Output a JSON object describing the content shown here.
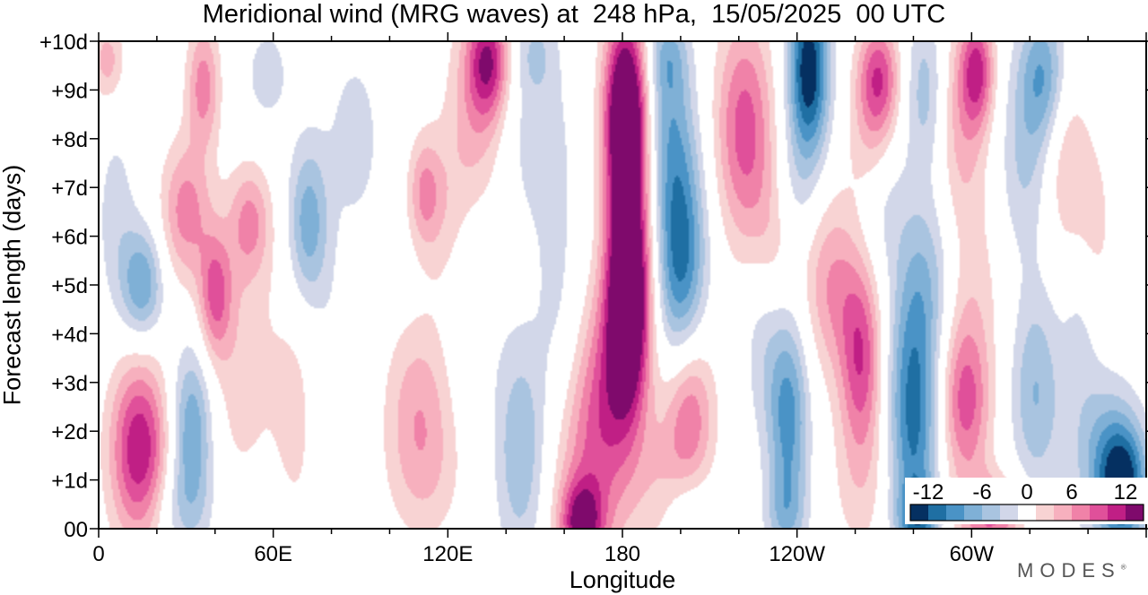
{
  "chart_data": {
    "type": "heatmap",
    "title": "Meridional wind (MRG waves) at  248 hPa,  15/05/2025  00 UTC",
    "xlabel": "Longitude",
    "ylabel": "Forecast length (days)",
    "x_ticks": [
      "0",
      "60E",
      "120E",
      "180",
      "120W",
      "60W"
    ],
    "x_tick_values": [
      0,
      60,
      120,
      180,
      240,
      300
    ],
    "x_range": [
      0,
      360
    ],
    "y_ticks": [
      "00",
      "+1d",
      "+2d",
      "+3d",
      "+4d",
      "+5d",
      "+6d",
      "+7d",
      "+8d",
      "+9d",
      "+10d"
    ],
    "y_range": [
      0,
      10
    ],
    "colorbar": {
      "labels": [
        "-12",
        "-6",
        "0",
        "6",
        "12"
      ],
      "label_values": [
        -12,
        -6,
        0,
        6,
        12
      ],
      "levels": [
        -14,
        -12,
        -10,
        -8,
        -6,
        -4,
        -2,
        2,
        4,
        6,
        8,
        10,
        12,
        14
      ],
      "colors": [
        "#053061",
        "#1f6fa3",
        "#4a93c6",
        "#7fb0d6",
        "#a9c4e0",
        "#d2d7e9",
        "#ffffff",
        "#f8d3d3",
        "#f7b0be",
        "#f082a8",
        "#e0509a",
        "#c01f85",
        "#7f0a6c"
      ]
    },
    "features": [
      {
        "lon": 3,
        "day": 9.6,
        "sx": 4,
        "sy": 0.6,
        "v": 5
      },
      {
        "lon": 14,
        "day": 1.6,
        "sx": 7,
        "sy": 1.3,
        "v": 12
      },
      {
        "lon": 6,
        "day": 6.4,
        "sx": 5,
        "sy": 1.4,
        "v": -3
      },
      {
        "lon": 15,
        "day": 5.0,
        "sx": 5,
        "sy": 0.8,
        "v": -8
      },
      {
        "lon": 30,
        "day": 6.5,
        "sx": 6,
        "sy": 1.0,
        "v": 7
      },
      {
        "lon": 36,
        "day": 9.1,
        "sx": 4,
        "sy": 0.9,
        "v": 7
      },
      {
        "lon": 40,
        "day": 4.8,
        "sx": 4,
        "sy": 0.9,
        "v": 8
      },
      {
        "lon": 32,
        "day": 2.0,
        "sx": 5,
        "sy": 1.2,
        "v": -8
      },
      {
        "lon": 28,
        "day": 0.4,
        "sx": 8,
        "sy": 0.7,
        "v": -3
      },
      {
        "lon": 52,
        "day": 6.3,
        "sx": 5,
        "sy": 0.8,
        "v": 6
      },
      {
        "lon": 48,
        "day": 3.5,
        "sx": 7,
        "sy": 2.0,
        "v": 3
      },
      {
        "lon": 70,
        "day": 2.8,
        "sx": 9,
        "sy": 2.4,
        "v": 3
      },
      {
        "lon": 72,
        "day": 6.2,
        "sx": 5,
        "sy": 1.2,
        "v": -8
      },
      {
        "lon": 80,
        "day": 3.0,
        "sx": 6,
        "sy": 1.8,
        "v": -3
      },
      {
        "lon": 88,
        "day": 8.0,
        "sx": 7,
        "sy": 1.4,
        "v": -3
      },
      {
        "lon": 58,
        "day": 9.3,
        "sx": 6,
        "sy": 0.8,
        "v": -3
      },
      {
        "lon": 110,
        "day": 2.6,
        "sx": 8,
        "sy": 1.2,
        "v": 5
      },
      {
        "lon": 112,
        "day": 1.0,
        "sx": 9,
        "sy": 1.0,
        "v": 3
      },
      {
        "lon": 120,
        "day": 6.2,
        "sx": 6,
        "sy": 1.4,
        "v": 3
      },
      {
        "lon": 112,
        "day": 6.9,
        "sx": 4,
        "sy": 0.8,
        "v": 6
      },
      {
        "lon": 130,
        "day": 8.5,
        "sx": 7,
        "sy": 1.6,
        "v": 5
      },
      {
        "lon": 134,
        "day": 9.6,
        "sx": 5,
        "sy": 0.8,
        "v": 10
      },
      {
        "lon": 128,
        "day": 5.0,
        "sx": 7,
        "sy": 1.5,
        "v": -2.5
      },
      {
        "lon": 145,
        "day": 1.6,
        "sx": 6,
        "sy": 1.6,
        "v": -6
      },
      {
        "lon": 150,
        "day": 8.2,
        "sx": 9,
        "sy": 1.5,
        "v": -3
      },
      {
        "lon": 150,
        "day": 9.8,
        "sx": 5,
        "sy": 0.6,
        "v": -3
      },
      {
        "lon": 158,
        "day": 4.5,
        "sx": 6,
        "sy": 2.0,
        "v": -2.5
      },
      {
        "lon": 168,
        "day": 1.0,
        "sx": 9,
        "sy": 1.6,
        "v": 6
      },
      {
        "lon": 166,
        "day": 0.1,
        "sx": 5,
        "sy": 0.6,
        "v": 10
      },
      {
        "lon": 175,
        "day": 3.0,
        "sx": 8,
        "sy": 1.5,
        "v": 6
      },
      {
        "lon": 182,
        "day": 4.8,
        "sx": 5,
        "sy": 1.5,
        "v": 14
      },
      {
        "lon": 181,
        "day": 8.5,
        "sx": 5,
        "sy": 1.3,
        "v": 14
      },
      {
        "lon": 182,
        "day": 6.6,
        "sx": 6,
        "sy": 3.2,
        "v": 7
      },
      {
        "lon": 196,
        "day": 8.4,
        "sx": 6,
        "sy": 1.4,
        "v": -6
      },
      {
        "lon": 200,
        "day": 5.6,
        "sx": 6,
        "sy": 1.6,
        "v": -11
      },
      {
        "lon": 195,
        "day": 9.7,
        "sx": 5,
        "sy": 0.6,
        "v": -4
      },
      {
        "lon": 203,
        "day": 2.4,
        "sx": 6,
        "sy": 1.2,
        "v": 8
      },
      {
        "lon": 194,
        "day": 0.9,
        "sx": 7,
        "sy": 1.0,
        "v": 3
      },
      {
        "lon": 202,
        "day": 0.4,
        "sx": 6,
        "sy": 0.6,
        "v": -3
      },
      {
        "lon": 222,
        "day": 8.2,
        "sx": 7,
        "sy": 1.6,
        "v": 9
      },
      {
        "lon": 232,
        "day": 6.0,
        "sx": 6,
        "sy": 1.2,
        "v": 4
      },
      {
        "lon": 244,
        "day": 9.4,
        "sx": 5,
        "sy": 1.3,
        "v": -14
      },
      {
        "lon": 238,
        "day": 6.8,
        "sx": 6,
        "sy": 1.0,
        "v": -3
      },
      {
        "lon": 237,
        "day": 2.3,
        "sx": 5,
        "sy": 1.5,
        "v": -9
      },
      {
        "lon": 228,
        "day": 4.0,
        "sx": 5,
        "sy": 1.4,
        "v": -3
      },
      {
        "lon": 236,
        "day": 0.3,
        "sx": 5,
        "sy": 0.6,
        "v": -4
      },
      {
        "lon": 252,
        "day": 5.0,
        "sx": 7,
        "sy": 1.3,
        "v": 6
      },
      {
        "lon": 262,
        "day": 3.5,
        "sx": 5,
        "sy": 1.3,
        "v": 9
      },
      {
        "lon": 268,
        "day": 9.3,
        "sx": 5,
        "sy": 0.8,
        "v": 9
      },
      {
        "lon": 266,
        "day": 8.0,
        "sx": 6,
        "sy": 1.0,
        "v": 4
      },
      {
        "lon": 270,
        "day": 6.8,
        "sx": 6,
        "sy": 1.0,
        "v": -3
      },
      {
        "lon": 262,
        "day": 1.0,
        "sx": 7,
        "sy": 1.2,
        "v": 3
      },
      {
        "lon": 280,
        "day": 2.4,
        "sx": 6,
        "sy": 2.0,
        "v": -11
      },
      {
        "lon": 284,
        "day": 9.0,
        "sx": 5,
        "sy": 1.2,
        "v": -5
      },
      {
        "lon": 286,
        "day": 5.2,
        "sx": 7,
        "sy": 1.2,
        "v": -4
      },
      {
        "lon": 282,
        "day": 0.2,
        "sx": 5,
        "sy": 0.5,
        "v": -7
      },
      {
        "lon": 298,
        "day": 2.6,
        "sx": 6,
        "sy": 1.2,
        "v": 9
      },
      {
        "lon": 297,
        "day": 8.3,
        "sx": 6,
        "sy": 1.6,
        "v": 5
      },
      {
        "lon": 302,
        "day": 9.4,
        "sx": 4,
        "sy": 0.8,
        "v": 9
      },
      {
        "lon": 307,
        "day": 0.2,
        "sx": 8,
        "sy": 0.6,
        "v": 8
      },
      {
        "lon": 300,
        "day": 5.0,
        "sx": 8,
        "sy": 1.2,
        "v": 2.5
      },
      {
        "lon": 325,
        "day": 9.3,
        "sx": 6,
        "sy": 1.0,
        "v": -8
      },
      {
        "lon": 318,
        "day": 7.5,
        "sx": 6,
        "sy": 1.4,
        "v": -4
      },
      {
        "lon": 332,
        "day": 7.8,
        "sx": 5,
        "sy": 1.6,
        "v": 4
      },
      {
        "lon": 322,
        "day": 2.8,
        "sx": 6,
        "sy": 1.5,
        "v": -6
      },
      {
        "lon": 352,
        "day": 0.9,
        "sx": 6,
        "sy": 0.9,
        "v": -13
      },
      {
        "lon": 344,
        "day": 1.6,
        "sx": 8,
        "sy": 1.2,
        "v": -5
      },
      {
        "lon": 342,
        "day": 6.0,
        "sx": 5,
        "sy": 1.6,
        "v": 3
      },
      {
        "lon": 352,
        "day": 9.2,
        "sx": 4,
        "sy": 0.9,
        "v": -3
      },
      {
        "lon": 356,
        "day": 9.7,
        "sx": 4,
        "sy": 0.7,
        "v": 3
      },
      {
        "lon": 338,
        "day": 4.3,
        "sx": 5,
        "sy": 1.2,
        "v": -3
      }
    ]
  },
  "branding": {
    "text": "MODES"
  }
}
